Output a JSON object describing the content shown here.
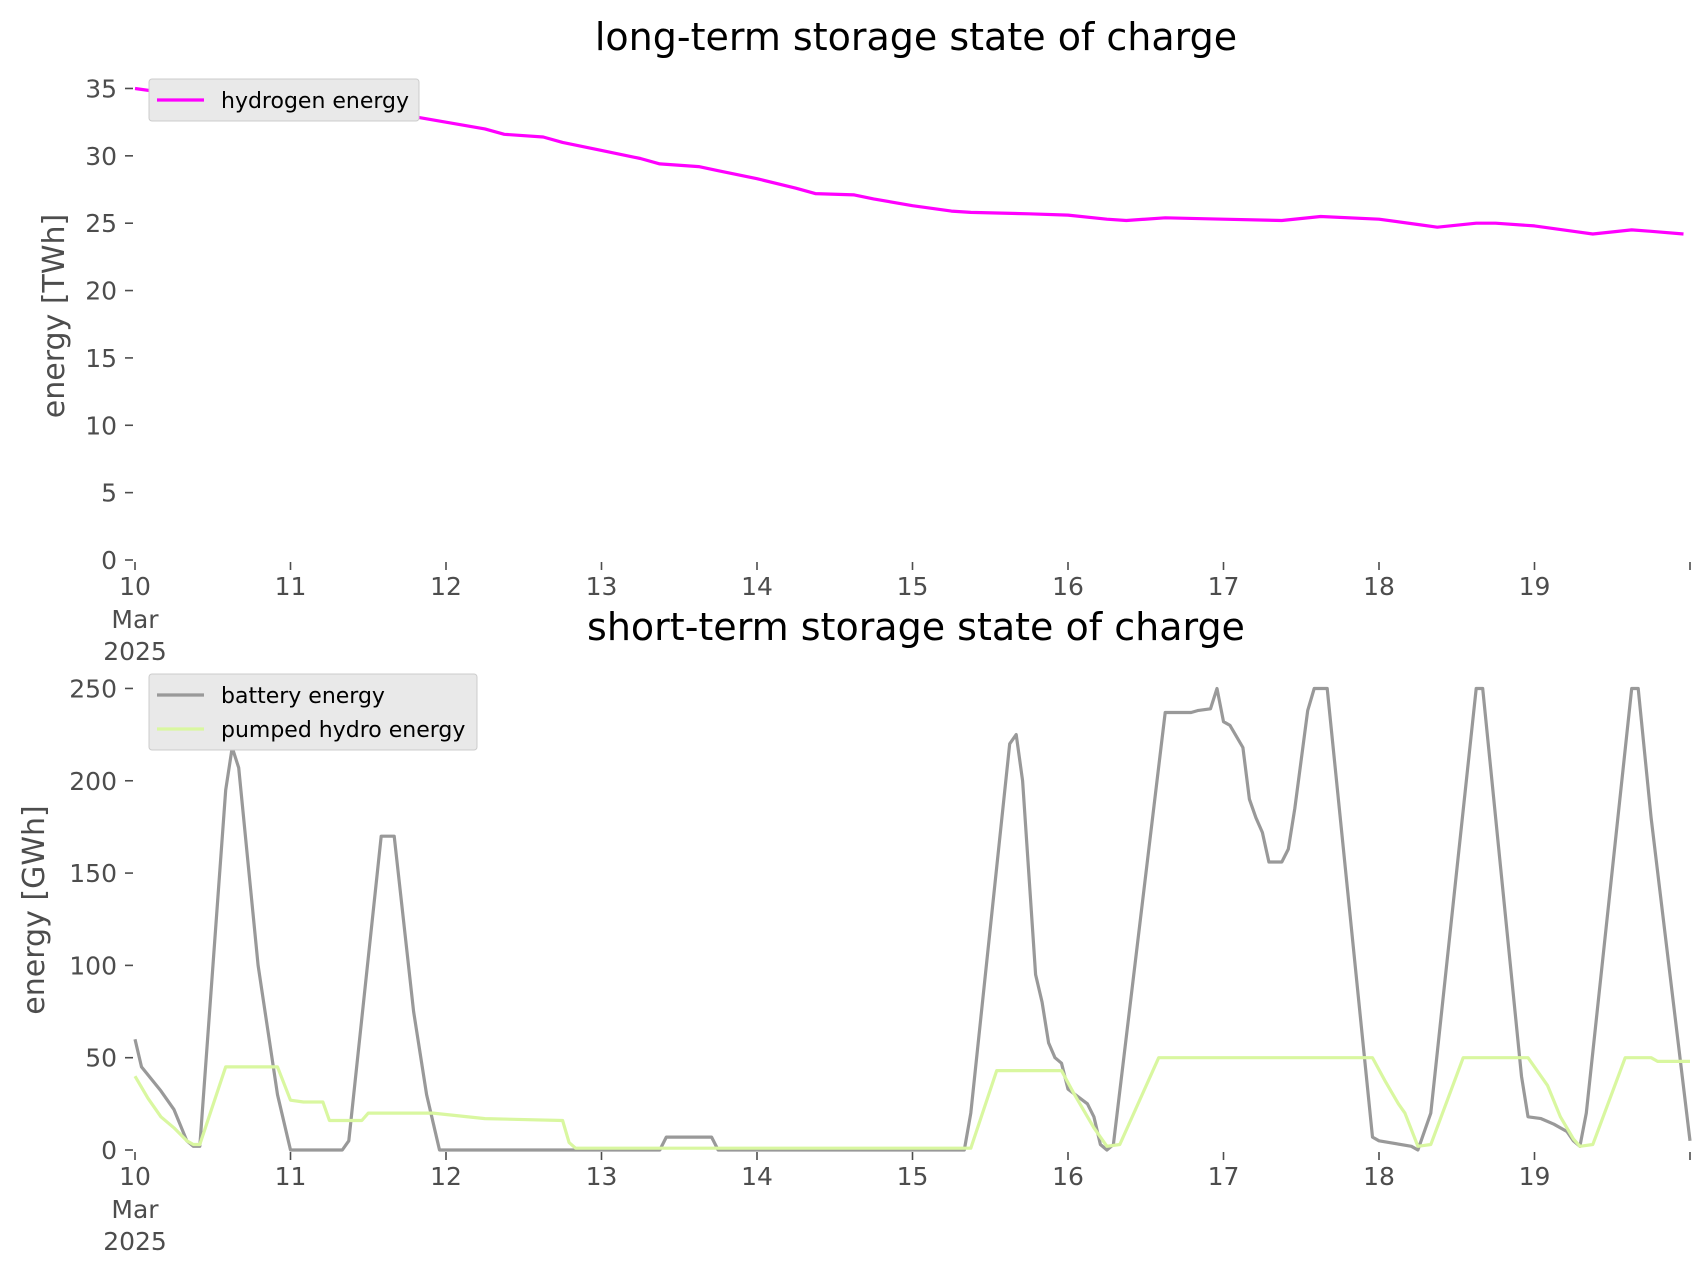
{
  "chart_data": [
    {
      "type": "line",
      "title": "long-term storage state of charge",
      "xlabel": "",
      "ylabel": "energy [TWh]",
      "ylim": [
        0,
        36
      ],
      "xlim": [
        "2025-03-10 00:00",
        "2025-03-20 00:00"
      ],
      "yticks": [
        "0",
        "5",
        "10",
        "15",
        "20",
        "25",
        "30",
        "35"
      ],
      "xticks": [
        "10",
        "11",
        "12",
        "13",
        "14",
        "15",
        "16",
        "17",
        "18",
        "19"
      ],
      "xtick_sublabels": [
        "Mar",
        "2025"
      ],
      "grid": false,
      "legend": "upper left",
      "series": [
        {
          "name": "hydrogen energy",
          "color": "#ff00ff",
          "points": [
            [
              "2025-03-10 00:00",
              35.0
            ],
            [
              "2025-03-10 06:00",
              34.6
            ],
            [
              "2025-03-10 12:00",
              34.3
            ],
            [
              "2025-03-10 18:00",
              34.1
            ],
            [
              "2025-03-11 00:00",
              33.9
            ],
            [
              "2025-03-11 06:00",
              33.5
            ],
            [
              "2025-03-11 09:00",
              33.1
            ],
            [
              "2025-03-11 18:00",
              33.0
            ],
            [
              "2025-03-12 00:00",
              32.5
            ],
            [
              "2025-03-12 06:00",
              32.0
            ],
            [
              "2025-03-12 09:00",
              31.6
            ],
            [
              "2025-03-12 15:00",
              31.4
            ],
            [
              "2025-03-12 18:00",
              31.0
            ],
            [
              "2025-03-13 00:00",
              30.4
            ],
            [
              "2025-03-13 06:00",
              29.8
            ],
            [
              "2025-03-13 09:00",
              29.4
            ],
            [
              "2025-03-13 15:00",
              29.2
            ],
            [
              "2025-03-13 18:00",
              28.9
            ],
            [
              "2025-03-14 00:00",
              28.3
            ],
            [
              "2025-03-14 06:00",
              27.6
            ],
            [
              "2025-03-14 09:00",
              27.2
            ],
            [
              "2025-03-14 15:00",
              27.1
            ],
            [
              "2025-03-14 18:00",
              26.8
            ],
            [
              "2025-03-15 00:00",
              26.3
            ],
            [
              "2025-03-15 06:00",
              25.9
            ],
            [
              "2025-03-15 09:00",
              25.8
            ],
            [
              "2025-03-15 18:00",
              25.7
            ],
            [
              "2025-03-16 00:00",
              25.6
            ],
            [
              "2025-03-16 06:00",
              25.3
            ],
            [
              "2025-03-16 09:00",
              25.2
            ],
            [
              "2025-03-16 15:00",
              25.4
            ],
            [
              "2025-03-17 00:00",
              25.3
            ],
            [
              "2025-03-17 09:00",
              25.2
            ],
            [
              "2025-03-17 15:00",
              25.5
            ],
            [
              "2025-03-18 00:00",
              25.3
            ],
            [
              "2025-03-18 06:00",
              24.9
            ],
            [
              "2025-03-18 09:00",
              24.7
            ],
            [
              "2025-03-18 15:00",
              25.0
            ],
            [
              "2025-03-18 18:00",
              25.0
            ],
            [
              "2025-03-19 00:00",
              24.8
            ],
            [
              "2025-03-19 06:00",
              24.4
            ],
            [
              "2025-03-19 09:00",
              24.2
            ],
            [
              "2025-03-19 15:00",
              24.5
            ],
            [
              "2025-03-19 18:00",
              24.4
            ],
            [
              "2025-03-19 23:00",
              24.2
            ]
          ]
        }
      ]
    },
    {
      "type": "line",
      "title": "short-term storage state of charge",
      "xlabel": "",
      "ylabel": "energy [GWh]",
      "ylim": [
        0,
        260
      ],
      "xlim": [
        "2025-03-10 00:00",
        "2025-03-20 00:00"
      ],
      "yticks": [
        "0",
        "50",
        "100",
        "150",
        "200",
        "250"
      ],
      "xticks": [
        "10",
        "11",
        "12",
        "13",
        "14",
        "15",
        "16",
        "17",
        "18",
        "19"
      ],
      "xtick_sublabels": [
        "Mar",
        "2025"
      ],
      "grid": false,
      "legend": "upper left",
      "series": [
        {
          "name": "battery energy",
          "color": "#999999",
          "points": [
            [
              "2025-03-10 00:00",
              60
            ],
            [
              "2025-03-10 01:00",
              45
            ],
            [
              "2025-03-10 04:00",
              32
            ],
            [
              "2025-03-10 06:00",
              22
            ],
            [
              "2025-03-10 08:00",
              5
            ],
            [
              "2025-03-10 09:00",
              2
            ],
            [
              "2025-03-10 10:00",
              2
            ],
            [
              "2025-03-10 14:00",
              195
            ],
            [
              "2025-03-10 15:00",
              218
            ],
            [
              "2025-03-10 16:00",
              207
            ],
            [
              "2025-03-10 19:00",
              100
            ],
            [
              "2025-03-10 22:00",
              30
            ],
            [
              "2025-03-11 00:00",
              0
            ],
            [
              "2025-03-11 08:00",
              0
            ],
            [
              "2025-03-11 09:00",
              5
            ],
            [
              "2025-03-11 14:00",
              170
            ],
            [
              "2025-03-11 16:00",
              170
            ],
            [
              "2025-03-11 19:00",
              75
            ],
            [
              "2025-03-11 21:00",
              30
            ],
            [
              "2025-03-11 23:00",
              0
            ],
            [
              "2025-03-13 09:00",
              0
            ],
            [
              "2025-03-13 10:00",
              7
            ],
            [
              "2025-03-13 17:00",
              7
            ],
            [
              "2025-03-13 18:00",
              0
            ],
            [
              "2025-03-15 08:00",
              0
            ],
            [
              "2025-03-15 09:00",
              20
            ],
            [
              "2025-03-15 15:00",
              220
            ],
            [
              "2025-03-15 16:00",
              225
            ],
            [
              "2025-03-15 17:00",
              200
            ],
            [
              "2025-03-15 19:00",
              95
            ],
            [
              "2025-03-15 20:00",
              80
            ],
            [
              "2025-03-15 21:00",
              58
            ],
            [
              "2025-03-15 22:00",
              50
            ],
            [
              "2025-03-15 23:00",
              47
            ],
            [
              "2025-03-16 00:00",
              33
            ],
            [
              "2025-03-16 03:00",
              25
            ],
            [
              "2025-03-16 04:00",
              18
            ],
            [
              "2025-03-16 05:00",
              3
            ],
            [
              "2025-03-16 06:00",
              0
            ],
            [
              "2025-03-16 07:00",
              3
            ],
            [
              "2025-03-16 15:00",
              237
            ],
            [
              "2025-03-16 16:00",
              237
            ],
            [
              "2025-03-16 19:00",
              237
            ],
            [
              "2025-03-16 20:00",
              238
            ],
            [
              "2025-03-16 22:00",
              239
            ],
            [
              "2025-03-16 23:00",
              250
            ],
            [
              "2025-03-17 00:00",
              232
            ],
            [
              "2025-03-17 01:00",
              230
            ],
            [
              "2025-03-17 03:00",
              218
            ],
            [
              "2025-03-17 04:00",
              190
            ],
            [
              "2025-03-17 05:00",
              180
            ],
            [
              "2025-03-17 06:00",
              172
            ],
            [
              "2025-03-17 07:00",
              156
            ],
            [
              "2025-03-17 09:00",
              156
            ],
            [
              "2025-03-17 10:00",
              163
            ],
            [
              "2025-03-17 11:00",
              185
            ],
            [
              "2025-03-17 13:00",
              238
            ],
            [
              "2025-03-17 14:00",
              250
            ],
            [
              "2025-03-17 16:00",
              250
            ],
            [
              "2025-03-17 23:00",
              7
            ],
            [
              "2025-03-18 00:00",
              5
            ],
            [
              "2025-03-18 05:00",
              2
            ],
            [
              "2025-03-18 06:00",
              0
            ],
            [
              "2025-03-18 08:00",
              20
            ],
            [
              "2025-03-18 15:00",
              250
            ],
            [
              "2025-03-18 16:00",
              250
            ],
            [
              "2025-03-18 22:00",
              40
            ],
            [
              "2025-03-18 23:00",
              18
            ],
            [
              "2025-03-19 01:00",
              17
            ],
            [
              "2025-03-19 03:00",
              14
            ],
            [
              "2025-03-19 05:00",
              10
            ],
            [
              "2025-03-19 06:00",
              5
            ],
            [
              "2025-03-19 07:00",
              2
            ],
            [
              "2025-03-19 08:00",
              20
            ],
            [
              "2025-03-19 15:00",
              250
            ],
            [
              "2025-03-19 16:00",
              250
            ],
            [
              "2025-03-19 18:00",
              180
            ],
            [
              "2025-03-20 00:00",
              5
            ]
          ]
        },
        {
          "name": "pumped hydro energy",
          "color": "#d9f7a0",
          "points": [
            [
              "2025-03-10 00:00",
              40
            ],
            [
              "2025-03-10 02:00",
              28
            ],
            [
              "2025-03-10 04:00",
              18
            ],
            [
              "2025-03-10 06:00",
              12
            ],
            [
              "2025-03-10 08:00",
              5
            ],
            [
              "2025-03-10 09:00",
              3
            ],
            [
              "2025-03-10 10:00",
              3
            ],
            [
              "2025-03-10 14:00",
              45
            ],
            [
              "2025-03-10 22:00",
              45
            ],
            [
              "2025-03-11 00:00",
              27
            ],
            [
              "2025-03-11 02:00",
              26
            ],
            [
              "2025-03-11 05:00",
              26
            ],
            [
              "2025-03-11 06:00",
              16
            ],
            [
              "2025-03-11 11:00",
              16
            ],
            [
              "2025-03-11 12:00",
              20
            ],
            [
              "2025-03-11 22:00",
              20
            ],
            [
              "2025-03-12 06:00",
              17
            ],
            [
              "2025-03-12 18:00",
              16
            ],
            [
              "2025-03-12 19:00",
              4
            ],
            [
              "2025-03-12 20:00",
              1
            ],
            [
              "2025-03-15 09:00",
              1
            ],
            [
              "2025-03-15 13:00",
              43
            ],
            [
              "2025-03-15 23:00",
              43
            ],
            [
              "2025-03-16 01:00",
              30
            ],
            [
              "2025-03-16 04:00",
              12
            ],
            [
              "2025-03-16 06:00",
              2
            ],
            [
              "2025-03-16 08:00",
              3
            ],
            [
              "2025-03-16 14:00",
              50
            ],
            [
              "2025-03-17 23:00",
              50
            ],
            [
              "2025-03-18 01:00",
              37
            ],
            [
              "2025-03-18 03:00",
              25
            ],
            [
              "2025-03-18 04:00",
              20
            ],
            [
              "2025-03-18 06:00",
              2
            ],
            [
              "2025-03-18 08:00",
              3
            ],
            [
              "2025-03-18 13:00",
              50
            ],
            [
              "2025-03-18 23:00",
              50
            ],
            [
              "2025-03-19 02:00",
              35
            ],
            [
              "2025-03-19 04:00",
              18
            ],
            [
              "2025-03-19 06:00",
              6
            ],
            [
              "2025-03-19 07:00",
              2
            ],
            [
              "2025-03-19 09:00",
              3
            ],
            [
              "2025-03-19 14:00",
              50
            ],
            [
              "2025-03-19 18:00",
              50
            ],
            [
              "2025-03-19 19:00",
              48
            ],
            [
              "2025-03-20 00:00",
              48
            ]
          ]
        }
      ]
    }
  ]
}
